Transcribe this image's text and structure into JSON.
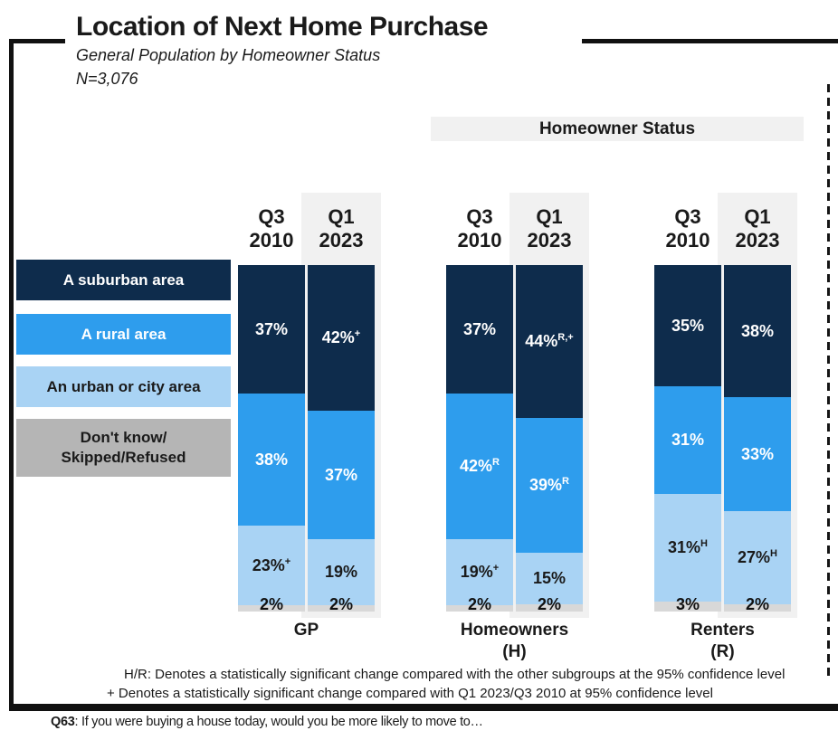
{
  "title": "Location of Next Home Purchase",
  "subtitle": "General Population by Homeowner Status",
  "sample_label": "N=3,076",
  "homeowner_status_label": "Homeowner Status",
  "legend": {
    "items": [
      {
        "lines": [
          "A suburban area"
        ],
        "color": "#0e2c4c",
        "text_color": "#ffffff"
      },
      {
        "lines": [
          "A rural area"
        ],
        "color": "#2e9ded",
        "text_color": "#ffffff"
      },
      {
        "lines": [
          "An urban or city area"
        ],
        "color": "#a9d3f4",
        "text_color": "#1a1a1a"
      },
      {
        "lines": [
          "Don't know/",
          "Skipped/Refused"
        ],
        "color": "#b5b5b5",
        "text_color": "#1a1a1a"
      }
    ]
  },
  "chart_data": {
    "type": "stacked-bar",
    "unit": "percent",
    "stack_order_top_to_bottom": [
      "A suburban area",
      "A rural area",
      "An urban or city area",
      "Don't know/Skipped/Refused"
    ],
    "segment_colors": [
      "#0e2c4c",
      "#2e9ded",
      "#a9d3f4",
      "#d8d8d8"
    ],
    "label_colors": [
      "#ffffff",
      "#ffffff",
      "#1a1a1a",
      "#111111"
    ],
    "periods": [
      "Q3 2010",
      "Q1 2023"
    ],
    "groups": [
      {
        "name": "GP",
        "label_lines": [
          "GP"
        ],
        "bars": [
          {
            "period": "Q3 2010",
            "highlight": false,
            "values": [
              37,
              38,
              23,
              2
            ],
            "labels": [
              [
                "37%",
                ""
              ],
              [
                "38%",
                ""
              ],
              [
                "23%",
                "+"
              ],
              [
                "2%",
                ""
              ]
            ]
          },
          {
            "period": "Q1 2023",
            "highlight": true,
            "values": [
              42,
              37,
              19,
              2
            ],
            "labels": [
              [
                "42%",
                "+"
              ],
              [
                "37%",
                ""
              ],
              [
                "19%",
                ""
              ],
              [
                "2%",
                ""
              ]
            ]
          }
        ]
      },
      {
        "name": "Homeowners (H)",
        "label_lines": [
          "Homeowners",
          "(H)"
        ],
        "bars": [
          {
            "period": "Q3 2010",
            "highlight": false,
            "values": [
              37,
              42,
              19,
              2
            ],
            "labels": [
              [
                "37%",
                ""
              ],
              [
                "42%",
                "R"
              ],
              [
                "19%",
                "+"
              ],
              [
                "2%",
                ""
              ]
            ]
          },
          {
            "period": "Q1 2023",
            "highlight": true,
            "values": [
              44,
              39,
              15,
              2
            ],
            "labels": [
              [
                "44%",
                "R,+"
              ],
              [
                "39%",
                "R"
              ],
              [
                "15%",
                ""
              ],
              [
                "2%",
                ""
              ]
            ]
          }
        ]
      },
      {
        "name": "Renters (R)",
        "label_lines": [
          "Renters",
          "(R)"
        ],
        "bars": [
          {
            "period": "Q3 2010",
            "highlight": false,
            "values": [
              35,
              31,
              31,
              3
            ],
            "labels": [
              [
                "35%",
                ""
              ],
              [
                "31%",
                ""
              ],
              [
                "31%",
                "H"
              ],
              [
                "3%",
                ""
              ]
            ]
          },
          {
            "period": "Q1 2023",
            "highlight": true,
            "values": [
              38,
              33,
              27,
              2
            ],
            "labels": [
              [
                "38%",
                ""
              ],
              [
                "33%",
                ""
              ],
              [
                "27%",
                "H"
              ],
              [
                "2%",
                ""
              ]
            ]
          }
        ]
      }
    ]
  },
  "footnotes": [
    "H/R: Denotes a statistically significant change compared with the other subgroups at the 95% confidence level",
    "+ Denotes a statistically significant change compared with Q1 2023/Q3 2010 at 95% confidence level"
  ],
  "question": {
    "id": "Q63",
    "text": ": If you were buying a house today, would you be more likely to move to…"
  }
}
